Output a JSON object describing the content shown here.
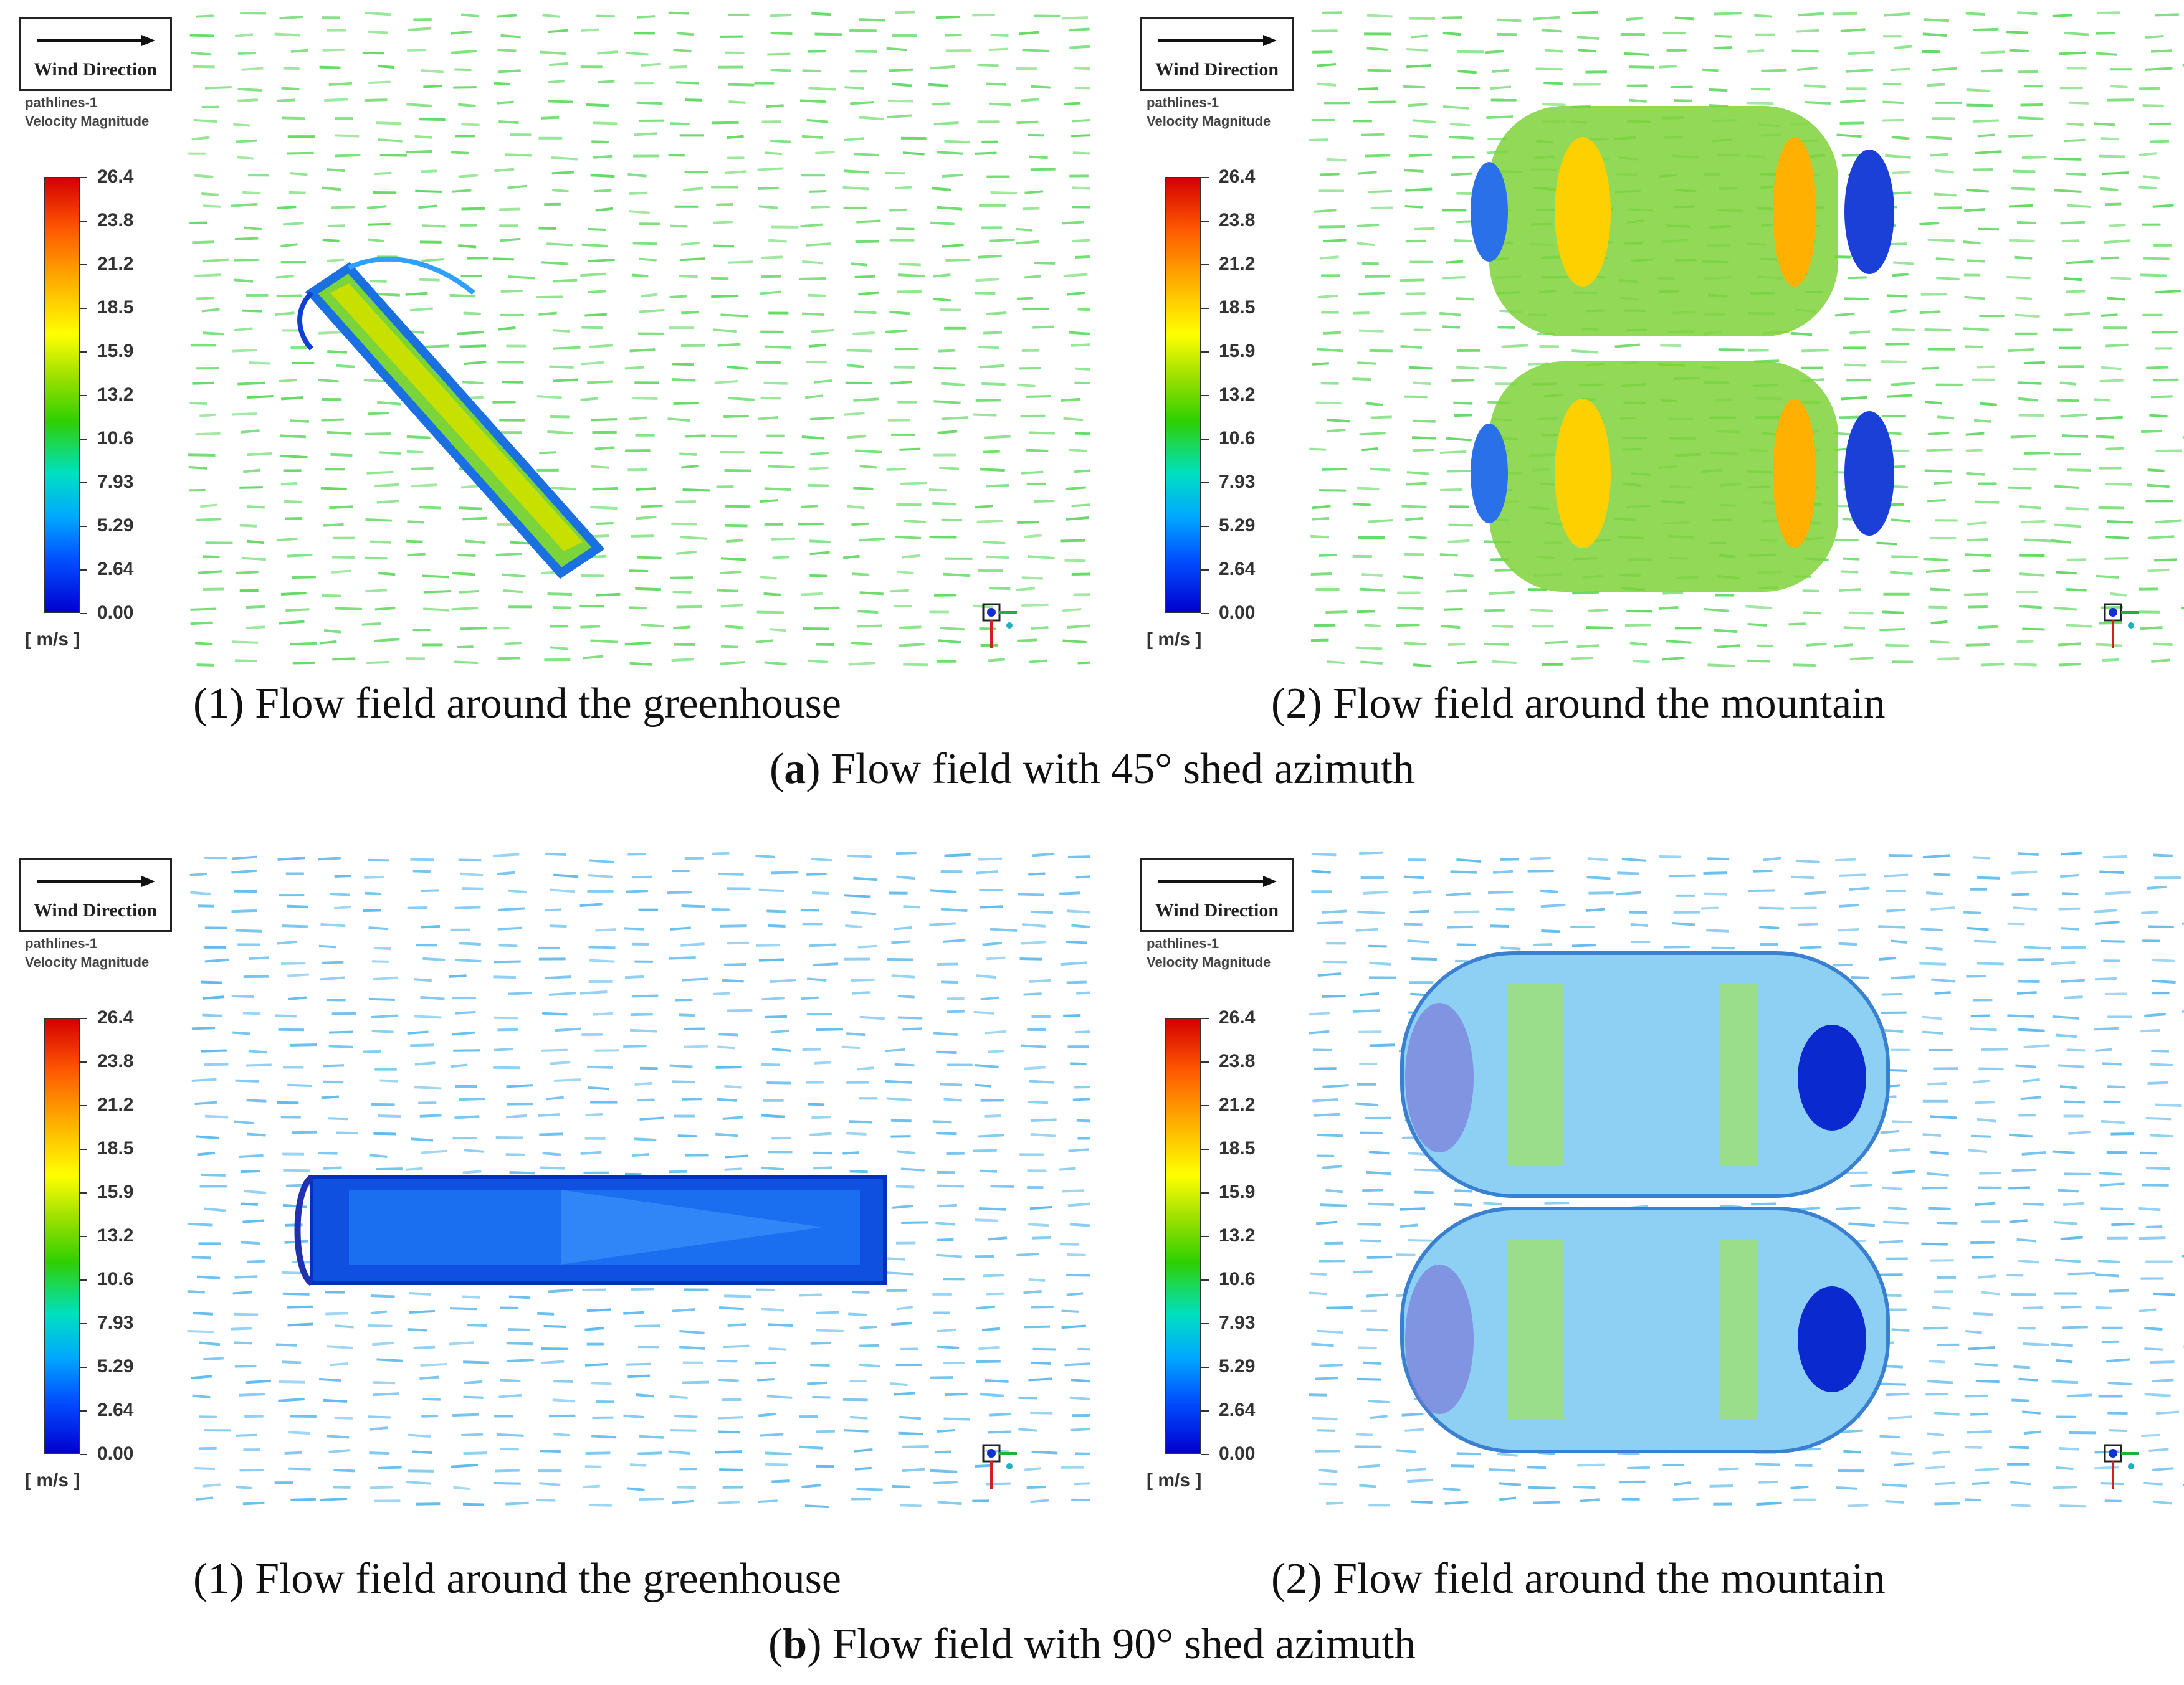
{
  "panels": [
    {
      "wind_label": "Wind Direction",
      "legend_line1": "pathlines-1",
      "legend_line2": "Velocity Magnitude",
      "ticks": [
        "26.4",
        "23.8",
        "21.2",
        "18.5",
        "15.9",
        "13.2",
        "10.6",
        "7.93",
        "5.29",
        "2.64",
        "0.00"
      ],
      "unit": "[ m/s ]",
      "caption": "(1) Flow field around the greenhouse"
    },
    {
      "wind_label": "Wind Direction",
      "legend_line1": "pathlines-1",
      "legend_line2": "Velocity Magnitude",
      "ticks": [
        "26.4",
        "23.8",
        "21.2",
        "18.5",
        "15.9",
        "13.2",
        "10.6",
        "7.93",
        "5.29",
        "2.64",
        "0.00"
      ],
      "unit": "[ m/s ]",
      "caption": "(2) Flow field around the mountain"
    },
    {
      "wind_label": "Wind Direction",
      "legend_line1": "pathlines-1",
      "legend_line2": "Velocity Magnitude",
      "ticks": [
        "26.4",
        "23.8",
        "21.2",
        "18.5",
        "15.9",
        "13.2",
        "10.6",
        "7.93",
        "5.29",
        "2.64",
        "0.00"
      ],
      "unit": "[ m/s ]",
      "caption": "(1) Flow field around the greenhouse"
    },
    {
      "wind_label": "Wind Direction",
      "legend_line1": "pathlines-1",
      "legend_line2": "Velocity Magnitude",
      "ticks": [
        "26.4",
        "23.8",
        "21.2",
        "18.5",
        "15.9",
        "13.2",
        "10.6",
        "7.93",
        "5.29",
        "2.64",
        "0.00"
      ],
      "unit": "[ m/s ]",
      "caption": "(2) Flow field around the mountain"
    }
  ],
  "captions": {
    "a_letter": "a",
    "a_text": ") Flow field with 45° shed azimuth",
    "b_letter": "b",
    "b_text": ") Flow field with 90° shed azimuth"
  }
}
